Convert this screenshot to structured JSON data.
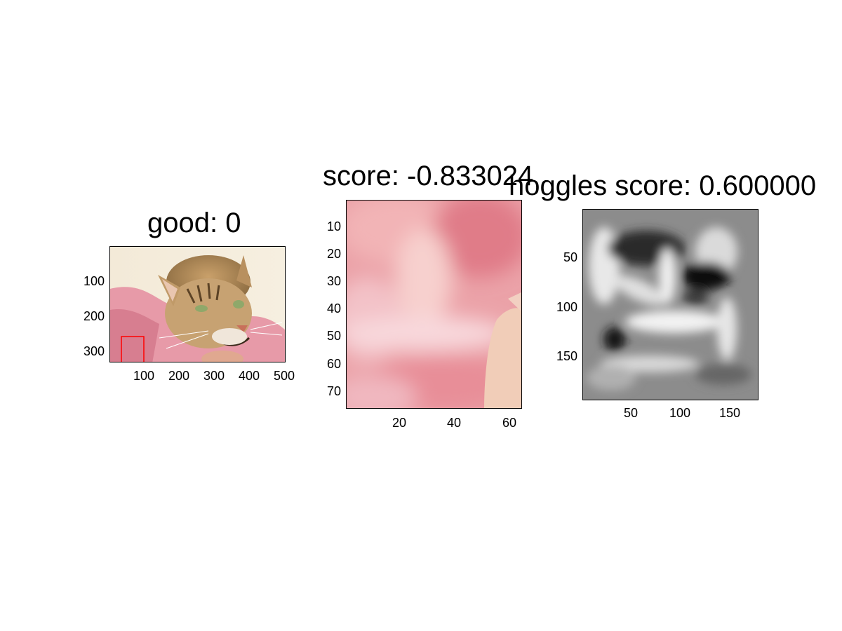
{
  "panels": {
    "left": {
      "title": "good: 0",
      "yticks": [
        "100",
        "200",
        "300"
      ],
      "xticks": [
        "100",
        "200",
        "300",
        "400",
        "500"
      ],
      "image": "cat-photo"
    },
    "middle": {
      "title": "score: -0.833024",
      "yticks": [
        "10",
        "20",
        "30",
        "40",
        "50",
        "60",
        "70"
      ],
      "xticks": [
        "20",
        "40",
        "60"
      ],
      "image": "cropped-pink-patch"
    },
    "right": {
      "title": "hoggles score: 0.600000",
      "yticks": [
        "50",
        "100",
        "150"
      ],
      "xticks": [
        "50",
        "100",
        "150"
      ],
      "image": "grayscale-hoggles-visualization"
    }
  },
  "colors": {
    "bbox": "#ff0000",
    "background": "#ffffff",
    "pink": "#e8a0a8",
    "cat_fur": "#b88a55"
  }
}
